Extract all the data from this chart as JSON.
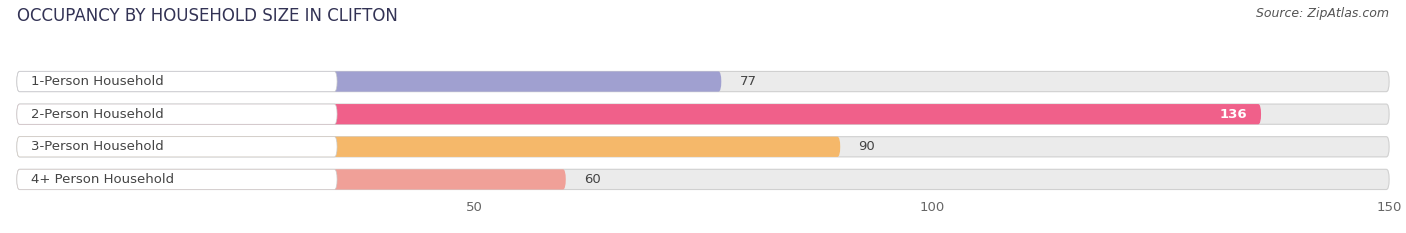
{
  "title": "OCCUPANCY BY HOUSEHOLD SIZE IN CLIFTON",
  "source": "Source: ZipAtlas.com",
  "categories": [
    "1-Person Household",
    "2-Person Household",
    "3-Person Household",
    "4+ Person Household"
  ],
  "values": [
    77,
    136,
    90,
    60
  ],
  "bar_colors": [
    "#a0a0d0",
    "#f0608a",
    "#f5b86a",
    "#f0a098"
  ],
  "bar_bg_color": "#ebebeb",
  "xlim_data": [
    0,
    150
  ],
  "xticks": [
    50,
    100,
    150
  ],
  "value_label_colors": [
    "#444444",
    "#ffffff",
    "#444444",
    "#444444"
  ],
  "title_fontsize": 12,
  "source_fontsize": 9,
  "label_fontsize": 9.5,
  "tick_fontsize": 9.5,
  "bar_height": 0.62,
  "figsize": [
    14.06,
    2.33
  ],
  "dpi": 100,
  "bg_color": "#ffffff"
}
